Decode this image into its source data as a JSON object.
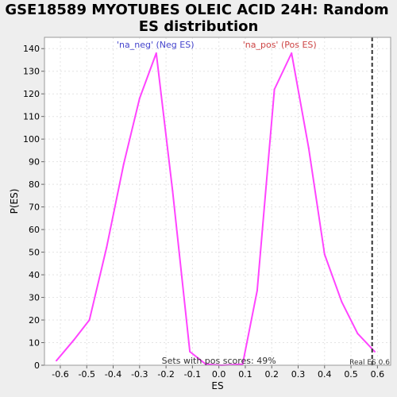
{
  "chart_data": {
    "type": "line",
    "title": "GSE18589 MYOTUBES OLEIC ACID 24H: Random ES distribution",
    "title_lines": [
      "GSE18589 MYOTUBES OLEIC ACID 24H: Random",
      "ES distribution"
    ],
    "xlabel": "ES",
    "ylabel": "P(ES)",
    "xlim": [
      -0.66,
      0.65
    ],
    "ylim": [
      0,
      145
    ],
    "x_ticks": [
      -0.6,
      -0.5,
      -0.4,
      -0.3,
      -0.2,
      -0.1,
      0.0,
      0.1,
      0.2,
      0.3,
      0.4,
      0.5,
      0.6
    ],
    "x_tick_labels": [
      "-0.6",
      "-0.5",
      "-0.4",
      "-0.3",
      "-0.2",
      "-0.1",
      "0.0",
      "0.1",
      "0.2",
      "0.3",
      "0.4",
      "0.5",
      "0.6"
    ],
    "y_ticks": [
      0,
      10,
      20,
      30,
      40,
      50,
      60,
      70,
      80,
      90,
      100,
      110,
      120,
      130,
      140
    ],
    "y_tick_labels": [
      "0",
      "10",
      "20",
      "30",
      "40",
      "50",
      "60",
      "70",
      "80",
      "90",
      "100",
      "110",
      "120",
      "130",
      "140"
    ],
    "grid": true,
    "series": [
      {
        "color": "#ff44ff",
        "x": [
          -0.615,
          -0.55,
          -0.49,
          -0.425,
          -0.36,
          -0.3,
          -0.237,
          -0.175,
          -0.11,
          -0.05,
          0.01,
          0.09,
          0.145,
          0.21,
          0.275,
          0.34,
          0.4,
          0.465,
          0.525,
          0.59
        ],
        "y": [
          2,
          11,
          20,
          52,
          89,
          118,
          138,
          77,
          6,
          0.5,
          0,
          0.5,
          33,
          122,
          138,
          96,
          49,
          28,
          14,
          6
        ]
      }
    ],
    "annotations": {
      "neg_label": "'na_neg' (Neg ES)",
      "pos_label": "'na_pos' (Pos ES)",
      "neg_color": "#4444cc",
      "pos_color": "#cc4444",
      "sets_text": "Sets with pos scores: 49%",
      "real_es_label": "Real ES 0.6",
      "real_es_value": 0.58
    },
    "colors": {
      "background": "#eeeeee",
      "plot_background": "#ffffff",
      "line": "#ff44ff",
      "real_es_line": "#333333"
    }
  }
}
